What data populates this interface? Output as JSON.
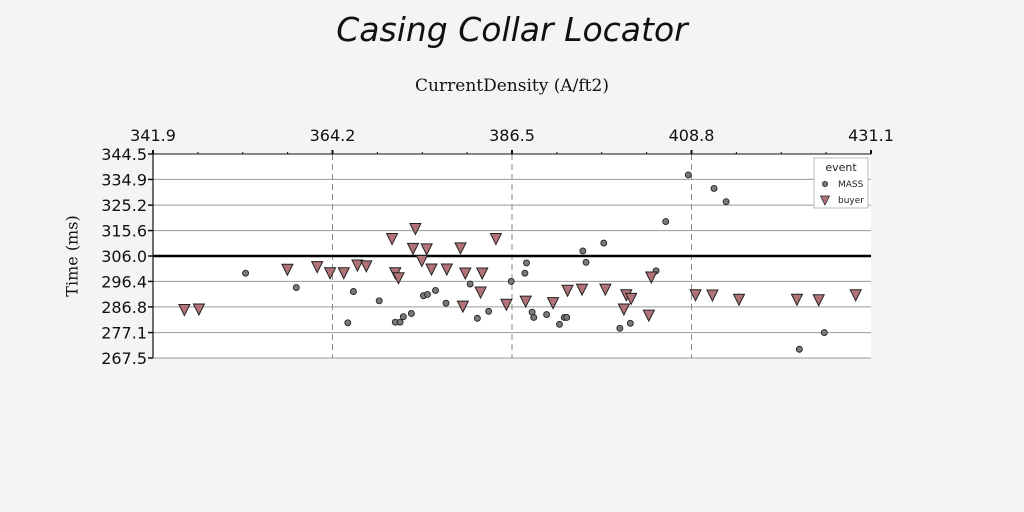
{
  "chart_data": {
    "type": "scatter",
    "title": "Casing Collar Locator",
    "xlabel": "CurrentDensity (A/ft2)",
    "ylabel": "Time (ms)",
    "xlim": [
      341.9,
      431.1
    ],
    "ylim": [
      267.5,
      344.5
    ],
    "x_ticks": [
      "341.9",
      "364.2",
      "386.5",
      "408.8",
      "431.1"
    ],
    "x_tick_values": [
      341.9,
      364.2,
      386.5,
      408.8,
      431.1
    ],
    "y_ticks": [
      "344.5",
      "334.9",
      "325.2",
      "315.6",
      "306.0",
      "296.4",
      "286.8",
      "277.1",
      "267.5"
    ],
    "y_tick_values": [
      344.5,
      334.9,
      325.2,
      315.6,
      306.0,
      296.4,
      286.8,
      277.1,
      267.5
    ],
    "reference_line_y": 306.0,
    "grid": "horizontal lines at y ticks; dashed vertical lines at inner x ticks",
    "x_axis_position": "top",
    "legend": {
      "title": "event",
      "placement": "top-right"
    },
    "series": [
      {
        "name": "MASS",
        "marker": "circle",
        "color": "#7a7a7a",
        "points": [
          [
            353.4,
            299.5
          ],
          [
            359.7,
            294.1
          ],
          [
            366.1,
            280.8
          ],
          [
            366.8,
            292.6
          ],
          [
            370.0,
            289.1
          ],
          [
            372.0,
            281.0
          ],
          [
            372.6,
            281.0
          ],
          [
            373.0,
            283.1
          ],
          [
            374.0,
            284.3
          ],
          [
            375.5,
            291.0
          ],
          [
            376.0,
            291.5
          ],
          [
            377.0,
            293.0
          ],
          [
            378.3,
            288.2
          ],
          [
            381.3,
            295.4
          ],
          [
            382.2,
            282.5
          ],
          [
            383.6,
            285.1
          ],
          [
            386.4,
            296.4
          ],
          [
            388.1,
            299.5
          ],
          [
            389.2,
            282.8
          ],
          [
            389.0,
            284.8
          ],
          [
            390.8,
            283.9
          ],
          [
            388.3,
            303.4
          ],
          [
            392.4,
            280.2
          ],
          [
            393.0,
            282.8
          ],
          [
            393.3,
            282.8
          ],
          [
            395.3,
            307.9
          ],
          [
            395.7,
            303.6
          ],
          [
            397.9,
            310.9
          ],
          [
            399.9,
            278.7
          ],
          [
            401.2,
            280.6
          ],
          [
            404.4,
            300.4
          ],
          [
            405.6,
            319.0
          ],
          [
            408.4,
            336.6
          ],
          [
            411.6,
            331.5
          ],
          [
            413.1,
            326.5
          ],
          [
            422.2,
            270.8
          ],
          [
            425.3,
            277.1
          ],
          [
            426.1,
            341.5
          ]
        ]
      },
      {
        "name": "buyer",
        "marker": "triangle-down",
        "color": "#b27378",
        "points": [
          [
            345.8,
            285.6
          ],
          [
            347.6,
            285.8
          ],
          [
            358.6,
            300.8
          ],
          [
            362.3,
            301.8
          ],
          [
            363.9,
            299.5
          ],
          [
            365.6,
            299.5
          ],
          [
            367.3,
            302.4
          ],
          [
            368.4,
            302.1
          ],
          [
            371.6,
            312.4
          ],
          [
            372.0,
            299.5
          ],
          [
            372.4,
            297.6
          ],
          [
            374.5,
            316.2
          ],
          [
            374.2,
            308.7
          ],
          [
            375.9,
            308.5
          ],
          [
            375.3,
            304.1
          ],
          [
            376.5,
            300.9
          ],
          [
            378.4,
            300.9
          ],
          [
            380.1,
            308.9
          ],
          [
            380.4,
            286.9
          ],
          [
            380.7,
            299.4
          ],
          [
            382.8,
            299.4
          ],
          [
            382.6,
            292.2
          ],
          [
            384.5,
            312.4
          ],
          [
            385.8,
            287.6
          ],
          [
            388.2,
            288.8
          ],
          [
            391.6,
            288.2
          ],
          [
            393.4,
            292.9
          ],
          [
            395.2,
            293.3
          ],
          [
            398.1,
            293.3
          ],
          [
            400.4,
            285.8
          ],
          [
            400.7,
            291.2
          ],
          [
            401.3,
            289.8
          ],
          [
            403.5,
            283.5
          ],
          [
            403.8,
            297.9
          ],
          [
            409.3,
            291.2
          ],
          [
            411.4,
            291.1
          ],
          [
            414.7,
            289.5
          ],
          [
            421.9,
            289.5
          ],
          [
            424.6,
            289.3
          ],
          [
            429.2,
            291.2
          ]
        ]
      }
    ]
  }
}
